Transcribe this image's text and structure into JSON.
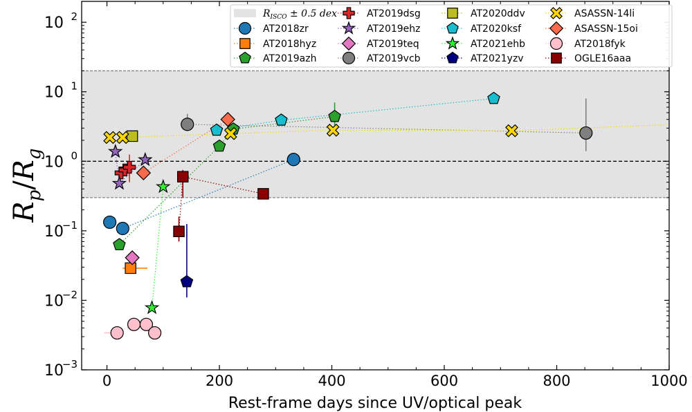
{
  "chart_data": {
    "type": "scatter",
    "xlabel": "Rest-frame days since UV/optical peak",
    "ylabel_main": "R",
    "ylabel_sub_top": "p",
    "ylabel_slash": "/",
    "ylabel_sub_bottom": "g",
    "xlim": [
      -45,
      1000
    ],
    "ylim_log10": [
      -3,
      2.3
    ],
    "x_ticks": [
      {
        "value": 0,
        "label": "0"
      },
      {
        "value": 200,
        "label": "200"
      },
      {
        "value": 400,
        "label": "400"
      },
      {
        "value": 600,
        "label": "600"
      },
      {
        "value": 800,
        "label": "800"
      },
      {
        "value": 1000,
        "label": "1000"
      }
    ],
    "y_ticks": [
      {
        "exp": -3,
        "base": "10",
        "sup": "−3"
      },
      {
        "exp": -2,
        "base": "10",
        "sup": "−2"
      },
      {
        "exp": -1,
        "base": "10",
        "sup": "−1"
      },
      {
        "exp": 0,
        "base": "10",
        "sup": "0"
      },
      {
        "exp": 1,
        "base": "10",
        "sup": "1"
      },
      {
        "exp": 2,
        "base": "10",
        "sup": "2"
      }
    ],
    "band": {
      "label_main": "R",
      "label_sub": "ISCO",
      "label_rest": " ± 0.5 dex",
      "y_low": 0.3,
      "y_high": 20,
      "color": "#e3e3e3",
      "edge": "#888888"
    },
    "reference_line": 1.0,
    "series": [
      {
        "name": "AT2018zr",
        "marker": "circle",
        "color": "#1f77b4",
        "points": [
          [
            5,
            0.133
          ],
          [
            28,
            0.108
          ],
          [
            332,
            1.06
          ]
        ]
      },
      {
        "name": "AT2018hyz",
        "marker": "square",
        "color": "#ff7f0e",
        "points": [
          [
            42,
            0.029
          ]
        ],
        "xerr": [
          [
            28,
            72
          ]
        ]
      },
      {
        "name": "AT2019azh",
        "marker": "pentagon",
        "color": "#2ca02c",
        "points": [
          [
            22,
            0.063
          ],
          [
            200,
            1.65
          ],
          [
            225,
            2.9
          ],
          [
            405,
            4.4
          ]
        ],
        "yerr": [
          [
            405,
            3.3,
            7.0
          ]
        ]
      },
      {
        "name": "AT2019dsg",
        "marker": "plus",
        "color": "#d62728",
        "points": [
          [
            25,
            0.68
          ],
          [
            32,
            0.75
          ],
          [
            40,
            0.82
          ]
        ],
        "yerr": [
          [
            40,
            0.5,
            1.25
          ]
        ]
      },
      {
        "name": "AT2019ehz",
        "marker": "star",
        "color": "#9467bd",
        "points": [
          [
            15,
            1.38
          ],
          [
            22,
            0.48
          ],
          [
            68,
            1.05
          ]
        ]
      },
      {
        "name": "AT2019teq",
        "marker": "diamond",
        "color": "#e377c2",
        "points": [
          [
            45,
            0.041
          ]
        ]
      },
      {
        "name": "AT2019vcb",
        "marker": "circle",
        "color": "#7f7f7f",
        "points": [
          [
            143,
            3.4
          ],
          [
            852,
            2.55
          ]
        ],
        "yerr": [
          [
            143,
            2.8,
            4.8
          ],
          [
            852,
            1.4,
            8.0
          ]
        ]
      },
      {
        "name": "AT2020ddv",
        "marker": "square",
        "color": "#bcbd22",
        "points": [
          [
            45,
            2.3
          ]
        ]
      },
      {
        "name": "AT2020ksf",
        "marker": "pentagon",
        "color": "#17becf",
        "points": [
          [
            195,
            2.8
          ],
          [
            310,
            3.9
          ],
          [
            688,
            8.0
          ]
        ]
      },
      {
        "name": "AT2021ehb",
        "marker": "star",
        "color": "#33ee33",
        "points": [
          [
            80,
            0.0078
          ],
          [
            100,
            0.43
          ]
        ]
      },
      {
        "name": "AT2021yzv",
        "marker": "pentagon",
        "color": "#000080",
        "points": [
          [
            142,
            0.0185
          ]
        ],
        "yerr": [
          [
            142,
            0.011,
            0.125
          ]
        ]
      },
      {
        "name": "ASASSN-14li",
        "marker": "x",
        "color": "#ffd700",
        "points": [
          [
            5,
            2.2
          ],
          [
            28,
            2.2
          ],
          [
            220,
            2.5
          ],
          [
            402,
            2.8
          ],
          [
            720,
            2.75
          ]
        ],
        "trend_to": [
          1000,
          3.35
        ]
      },
      {
        "name": "ASASSN-15oi",
        "marker": "diamond",
        "color": "#fb6a4a",
        "points": [
          [
            65,
            0.68
          ],
          [
            215,
            4.0
          ]
        ]
      },
      {
        "name": "AT2018fyk",
        "marker": "circle",
        "color": "#ffc0cb",
        "points": [
          [
            18,
            0.0034
          ],
          [
            48,
            0.0045
          ],
          [
            70,
            0.0045
          ],
          [
            85,
            0.0034
          ]
        ],
        "xerr": [
          [
            18,
            -5,
            28
          ]
        ]
      },
      {
        "name": "OGLE16aaa",
        "marker": "square",
        "color": "#8b0000",
        "points": [
          [
            128,
            0.098
          ],
          [
            135,
            0.6
          ],
          [
            278,
            0.34
          ]
        ],
        "yerr": [
          [
            128,
            0.07,
            0.16
          ],
          [
            135,
            0.3,
            0.75
          ]
        ]
      }
    ]
  }
}
